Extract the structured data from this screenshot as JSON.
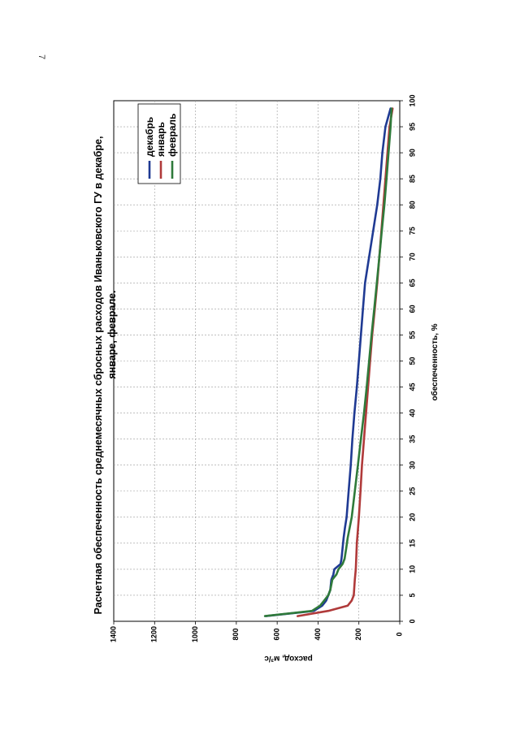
{
  "page_number": "7",
  "colors": {
    "декабрь": "#1f3a93",
    "январь": "#b03a3a",
    "февраль": "#2f7a3a",
    "grid": "#9a9a9a",
    "axis": "#000000"
  },
  "chart_data": {
    "type": "line",
    "title": "Расчетная обеспеченность среднемесячных сбросных расходов Иваньковского ГУ в декабре, январе, феврале.",
    "title_lines": [
      "Расчетная обеспеченность среднемесячных сбросных расходов Иваньковского ГУ в декабре,",
      "январе, феврале."
    ],
    "xlabel": "обеспеченность, %",
    "ylabel": "расход, м³/с",
    "xlim": [
      0,
      100
    ],
    "ylim": [
      0,
      1400
    ],
    "x_ticks": [
      0,
      5,
      10,
      15,
      20,
      25,
      30,
      35,
      40,
      45,
      50,
      55,
      60,
      65,
      70,
      75,
      80,
      85,
      90,
      95,
      100
    ],
    "y_ticks": [
      0,
      200,
      400,
      600,
      800,
      1000,
      1200,
      1400
    ],
    "grid": true,
    "legend_position": "top-right",
    "series": [
      {
        "name": "декабрь",
        "x": [
          1,
          2,
          3,
          4,
          5,
          6,
          8,
          9,
          10,
          11,
          12,
          14,
          16,
          18,
          20,
          25,
          30,
          35,
          40,
          45,
          50,
          55,
          60,
          65,
          70,
          75,
          80,
          85,
          90,
          95,
          98.5
        ],
        "y": [
          655,
          420,
          380,
          360,
          350,
          340,
          335,
          325,
          320,
          290,
          285,
          280,
          275,
          268,
          260,
          250,
          240,
          232,
          222,
          210,
          200,
          190,
          180,
          170,
          150,
          130,
          110,
          95,
          85,
          70,
          45
        ]
      },
      {
        "name": "январь",
        "x": [
          1,
          2,
          3,
          4,
          5,
          8,
          10,
          15,
          20,
          25,
          30,
          35,
          40,
          45,
          50,
          55,
          60,
          65,
          70,
          75,
          80,
          85,
          90,
          95,
          98.5
        ],
        "y": [
          500,
          350,
          255,
          235,
          225,
          220,
          215,
          210,
          200,
          192,
          185,
          175,
          165,
          155,
          145,
          135,
          122,
          110,
          100,
          90,
          80,
          70,
          60,
          50,
          35
        ]
      },
      {
        "name": "февраль",
        "x": [
          1,
          2,
          3,
          4,
          5,
          6,
          8,
          9,
          10,
          11,
          12,
          14,
          16,
          18,
          20,
          25,
          30,
          35,
          40,
          45,
          50,
          55,
          60,
          65,
          70,
          75,
          80,
          85,
          90,
          95,
          98.5
        ],
        "y": [
          660,
          430,
          390,
          370,
          350,
          340,
          330,
          310,
          300,
          280,
          270,
          262,
          255,
          245,
          235,
          220,
          205,
          190,
          175,
          162,
          150,
          138,
          125,
          112,
          100,
          88,
          75,
          65,
          55,
          45,
          40
        ]
      }
    ]
  }
}
